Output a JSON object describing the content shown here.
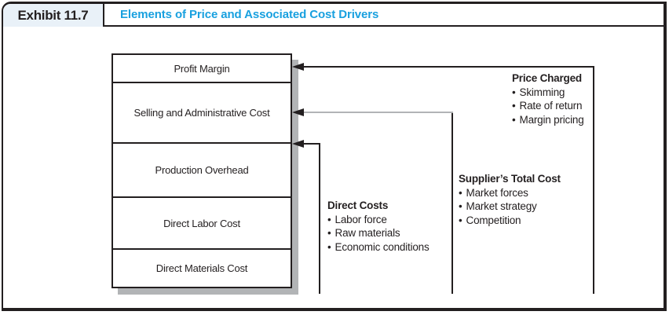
{
  "header": {
    "exhibit_label": "Exhibit 11.7",
    "title": "Elements of Price and Associated Cost Drivers"
  },
  "stack": {
    "boxes": [
      {
        "label": "Profit Margin"
      },
      {
        "label": "Selling and Administrative Cost"
      },
      {
        "label": "Production Overhead"
      },
      {
        "label": "Direct Labor Cost"
      },
      {
        "label": "Direct Materials Cost"
      }
    ]
  },
  "annotations": [
    {
      "heading": "Price Charged",
      "items": [
        "Skimming",
        "Rate of return",
        "Margin pricing"
      ]
    },
    {
      "heading": "Supplier’s Total Cost",
      "items": [
        "Market forces",
        "Market strategy",
        "Competition"
      ]
    },
    {
      "heading": "Direct Costs",
      "items": [
        "Labor force",
        "Raw materials",
        "Economic conditions"
      ]
    }
  ],
  "ui": {
    "bullet": "•"
  },
  "palette": {
    "title_blue": "#18a0df",
    "tab_background": "#e9f1f8",
    "ink_black": "#231f20",
    "shadow_gray": "#b2b4b6"
  }
}
